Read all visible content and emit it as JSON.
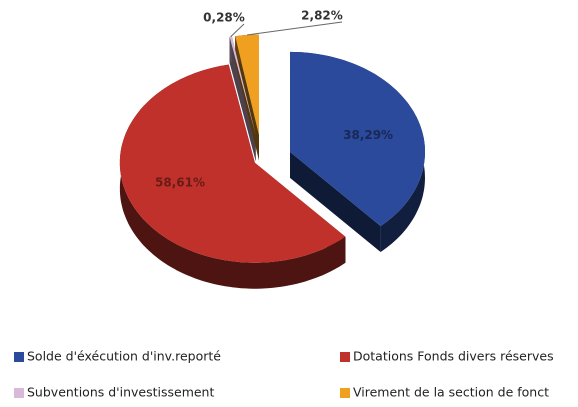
{
  "chart_data": {
    "type": "pie",
    "categories": [
      "Solde d'éxécution d'inv.reporté",
      "Dotations Fonds divers réserves",
      "Subventions d'investissement",
      "Virement de la section de fonct"
    ],
    "values": [
      38.29,
      58.61,
      0.28,
      2.82
    ],
    "value_labels": [
      "38,29%",
      "58,61%",
      "0,28%",
      "2,82%"
    ],
    "colors": [
      "#2b4a9c",
      "#c1312b",
      "#d8b9d8",
      "#f0a020"
    ],
    "legend": "bottom"
  }
}
